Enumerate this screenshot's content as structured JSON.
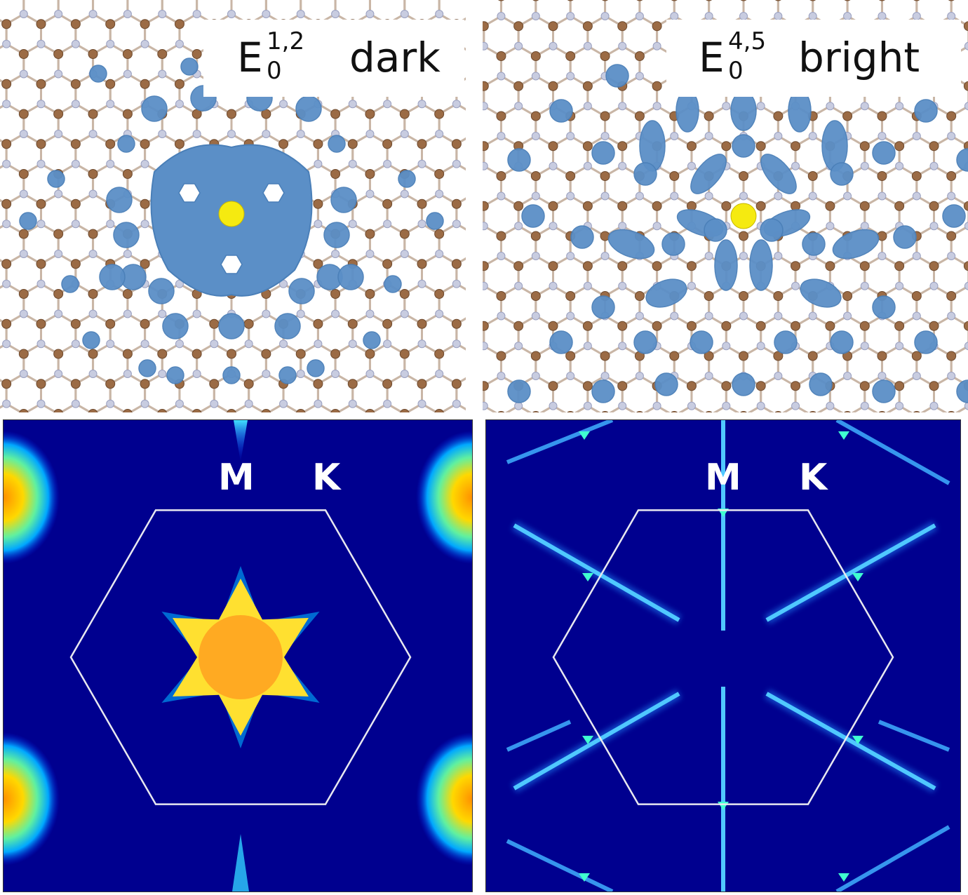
{
  "panels": {
    "top_left": {
      "symbol": "E",
      "superscript": "1,2",
      "subscript": "0",
      "state": "dark"
    },
    "top_right": {
      "symbol": "E",
      "superscript": "4,5",
      "subscript": "0",
      "state": "bright"
    },
    "bottom_left": {
      "point_m": "M",
      "point_k": "K"
    },
    "bottom_right": {
      "point_m": "M",
      "point_k": "K"
    }
  },
  "colors": {
    "boron": "#9b6b45",
    "nitrogen": "#c8cce0",
    "orbital": "#5b8fc7",
    "defect": "#f5ea10",
    "background_map": "#00008f",
    "brillouin_zone": "#e8e8f0"
  }
}
